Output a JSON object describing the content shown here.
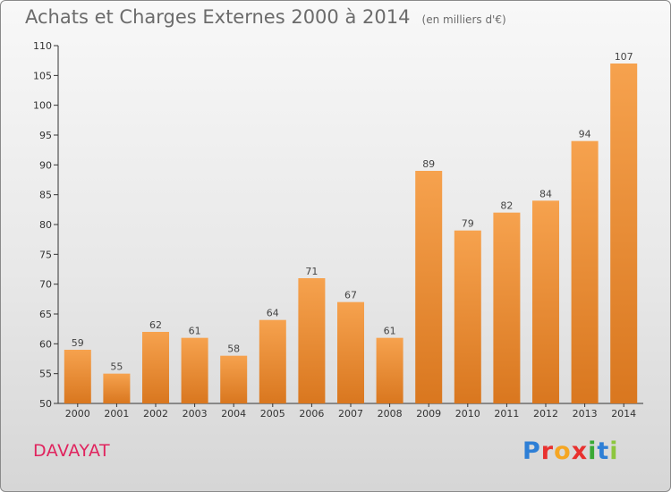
{
  "title": "Achats et Charges Externes 2000 à 2014",
  "unit": "(en milliers d'€)",
  "commune": "DAVAYAT",
  "logo": {
    "text": "Proxiti",
    "letter_colors": [
      "#2e7fd6",
      "#e8312f",
      "#f5a623",
      "#e8312f",
      "#3aa935",
      "#2e7fd6",
      "#8dc63f"
    ]
  },
  "colors": {
    "bar_top": "#f6a24e",
    "bar_bottom": "#d9771f",
    "accent_commune": "#e0245e"
  },
  "chart_data": {
    "type": "bar",
    "categories": [
      "2000",
      "2001",
      "2002",
      "2003",
      "2004",
      "2005",
      "2006",
      "2007",
      "2008",
      "2009",
      "2010",
      "2011",
      "2012",
      "2013",
      "2014"
    ],
    "values": [
      59,
      55,
      62,
      61,
      58,
      64,
      71,
      67,
      61,
      89,
      79,
      82,
      84,
      94,
      107
    ],
    "ylim": [
      50,
      110
    ],
    "yticks": [
      50,
      55,
      60,
      65,
      70,
      75,
      80,
      85,
      90,
      95,
      100,
      105,
      110
    ],
    "grid": false,
    "legend": "none"
  }
}
